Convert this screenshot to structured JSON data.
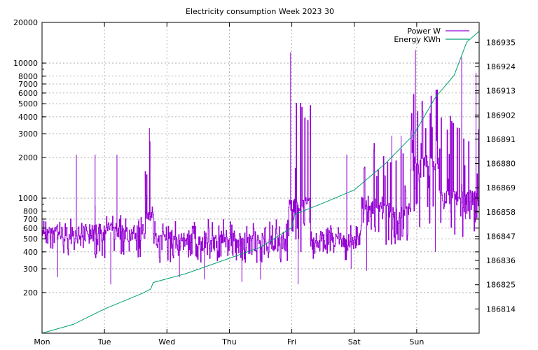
{
  "chart_data": {
    "type": "line",
    "title": "Electricity consumption Week 2023 30",
    "xlabel": "",
    "ylabel": "",
    "y2label": "",
    "grid": true,
    "legend_position": "top-right",
    "x_categories": [
      "Mon",
      "Tue",
      "Wed",
      "Thu",
      "Fri",
      "Sat",
      "Sun"
    ],
    "x_range_days": [
      0,
      7
    ],
    "y_scale": "log",
    "ylim": [
      100,
      20000
    ],
    "y_ticks": [
      {
        "value": 200,
        "label": "200"
      },
      {
        "value": 300,
        "label": "300"
      },
      {
        "value": 400,
        "label": "400"
      },
      {
        "value": 500,
        "label": "500"
      },
      {
        "value": 600,
        "label": "600"
      },
      {
        "value": 700,
        "label": "700"
      },
      {
        "value": 800,
        "label": "800"
      },
      {
        "value": 1000,
        "label": "1000"
      },
      {
        "value": 2000,
        "label": "2000"
      },
      {
        "value": 3000,
        "label": "3000"
      },
      {
        "value": 4000,
        "label": "4000"
      },
      {
        "value": 5000,
        "label": "5000"
      },
      {
        "value": 6000,
        "label": "6000"
      },
      {
        "value": 7000,
        "label": "7000"
      },
      {
        "value": 8000,
        "label": "8000"
      },
      {
        "value": 10000,
        "label": "10000"
      },
      {
        "value": 20000,
        "label": "20000"
      }
    ],
    "y2lim": [
      186803,
      186944
    ],
    "y2_ticks": [
      186814,
      186825,
      186836,
      186847,
      186858,
      186869,
      186880,
      186891,
      186902,
      186913,
      186924,
      186935
    ],
    "series": [
      {
        "name": "Power W",
        "axis": "y",
        "color": "#9400d3",
        "segments": [
          {
            "start": 0.0,
            "end": 0.8,
            "base": 540,
            "lo": 380,
            "hi": 720,
            "spikes": [
              [
                0.55,
                2100
              ],
              [
                0.85,
                880
              ],
              [
                0.25,
                260
              ]
            ]
          },
          {
            "start": 0.8,
            "end": 1.65,
            "base": 560,
            "lo": 360,
            "hi": 760,
            "spikes": [
              [
                0.85,
                2100
              ],
              [
                1.2,
                2100
              ],
              [
                1.1,
                230
              ],
              [
                1.55,
                700
              ]
            ]
          },
          {
            "start": 1.65,
            "end": 1.78,
            "base": 800,
            "lo": 700,
            "hi": 2800,
            "spikes": [
              [
                1.72,
                3300
              ]
            ]
          },
          {
            "start": 1.78,
            "end": 3.95,
            "base": 480,
            "lo": 330,
            "hi": 700,
            "spikes": [
              [
                2.2,
                260
              ],
              [
                2.6,
                250
              ],
              [
                3.2,
                240
              ],
              [
                3.5,
                250
              ]
            ]
          },
          {
            "start": 3.95,
            "end": 4.3,
            "base": 900,
            "lo": 380,
            "hi": 5100,
            "spikes": [
              [
                3.98,
                12000
              ],
              [
                4.1,
                230
              ]
            ]
          },
          {
            "start": 4.3,
            "end": 5.1,
            "base": 480,
            "lo": 330,
            "hi": 640,
            "spikes": [
              [
                4.88,
                2100
              ],
              [
                4.95,
                300
              ]
            ]
          },
          {
            "start": 5.1,
            "end": 5.45,
            "base": 900,
            "lo": 480,
            "hi": 2700,
            "spikes": [
              [
                5.2,
                290
              ]
            ]
          },
          {
            "start": 5.45,
            "end": 5.9,
            "base": 800,
            "lo": 450,
            "hi": 2400,
            "spikes": [
              [
                5.6,
                2900
              ],
              [
                5.75,
                2900
              ]
            ]
          },
          {
            "start": 5.9,
            "end": 6.35,
            "base": 1800,
            "lo": 600,
            "hi": 6500,
            "spikes": [
              [
                5.98,
                12500
              ],
              [
                6.3,
                400
              ]
            ]
          },
          {
            "start": 6.35,
            "end": 7.0,
            "base": 1000,
            "lo": 500,
            "hi": 4500,
            "spikes": [
              [
                6.72,
                11000
              ],
              [
                6.78,
                700
              ],
              [
                6.95,
                8500
              ]
            ]
          }
        ]
      },
      {
        "name": "Energy KWh",
        "axis": "y2",
        "color": "#009e73",
        "points": [
          [
            0.0,
            186803
          ],
          [
            0.5,
            186807
          ],
          [
            1.0,
            186814
          ],
          [
            1.6,
            186821
          ],
          [
            1.74,
            186823
          ],
          [
            1.78,
            186826
          ],
          [
            2.3,
            186830
          ],
          [
            2.9,
            186836
          ],
          [
            3.5,
            186842
          ],
          [
            4.0,
            186851
          ],
          [
            4.05,
            186857
          ],
          [
            4.5,
            186862
          ],
          [
            5.0,
            186868
          ],
          [
            5.5,
            186880
          ],
          [
            5.95,
            186893
          ],
          [
            6.3,
            186910
          ],
          [
            6.6,
            186920
          ],
          [
            6.8,
            186935
          ],
          [
            7.0,
            186940
          ]
        ]
      }
    ]
  }
}
